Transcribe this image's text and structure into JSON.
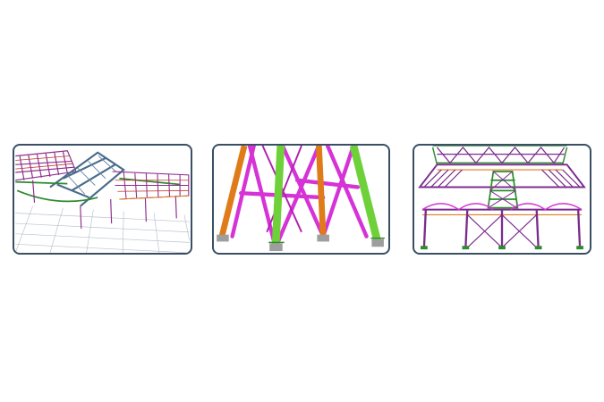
{
  "panels": [
    {
      "name": "roof-truss-structure-model",
      "colors": [
        "#8e2d8e",
        "#2e8b2e",
        "#4a6b8a",
        "#c0392b",
        "#e07b1a"
      ]
    },
    {
      "name": "tower-leg-bracing-model",
      "colors": [
        "#e07b1a",
        "#d633d6",
        "#6fd13a",
        "#9e9e9e"
      ]
    },
    {
      "name": "canopy-frame-structure-model",
      "colors": [
        "#7b2c8e",
        "#2e8b2e",
        "#e07b1a",
        "#d633d6"
      ]
    }
  ]
}
